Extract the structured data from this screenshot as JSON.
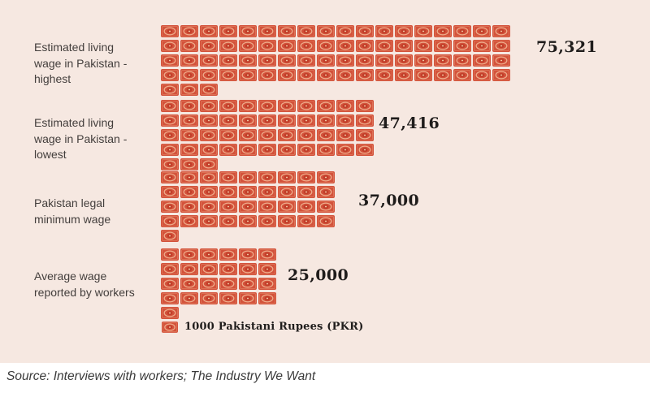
{
  "colors": {
    "panel-bg": "#f6e8e1",
    "note-body": "#d3523b",
    "note-inner": "#e07b5d",
    "note-ring": "#eead8b",
    "note-center": "#c13e29",
    "note-dot": "#f2c9a4",
    "label-color": "#433e3c",
    "value-color": "#1f1c1b",
    "source-color": "#3a3a3a"
  },
  "chart_data": {
    "type": "pictogram",
    "title": "",
    "unit": {
      "label": "1000 Pakistani Rupees (PKR)",
      "value_per_icon": 1000,
      "icon": "banknote"
    },
    "categories": [
      "Estimated living wage in Pakistan - highest",
      "Estimated living wage in Pakistan - lowest",
      "Pakistan legal minimum wage",
      "Average wage reported by workers"
    ],
    "values": [
      75321,
      47416,
      37000,
      25000
    ],
    "rows": [
      {
        "label": "Estimated living wage in Pakistan - highest",
        "label_lines": [
          "Estimated living",
          "wage in Pakistan -",
          "highest"
        ],
        "value": 75321,
        "value_label": "75,321",
        "icon_count": 75,
        "icons_per_line": 18
      },
      {
        "label": "Estimated living wage in Pakistan - lowest",
        "label_lines": [
          "Estimated living",
          "wage in Pakistan -",
          "lowest"
        ],
        "value": 47416,
        "value_label": "47,416",
        "icon_count": 47,
        "icons_per_line": 11
      },
      {
        "label": "Pakistan legal minimum wage",
        "label_lines": [
          "Pakistan legal",
          "minimum wage"
        ],
        "value": 37000,
        "value_label": "37,000",
        "icon_count": 37,
        "icons_per_line": 9
      },
      {
        "label": "Average wage reported by workers",
        "label_lines": [
          "Average wage",
          "reported by workers"
        ],
        "value": 25000,
        "value_label": "25,000",
        "icon_count": 25,
        "icons_per_line": 6
      }
    ],
    "legend_position": "bottom",
    "grid": false,
    "source": "Source: Interviews with workers; The Industry We Want"
  },
  "legend": {
    "label": "1000 Pakistani Rupees (PKR)"
  },
  "source": {
    "text": "Source: Interviews with workers; The Industry We Want"
  }
}
